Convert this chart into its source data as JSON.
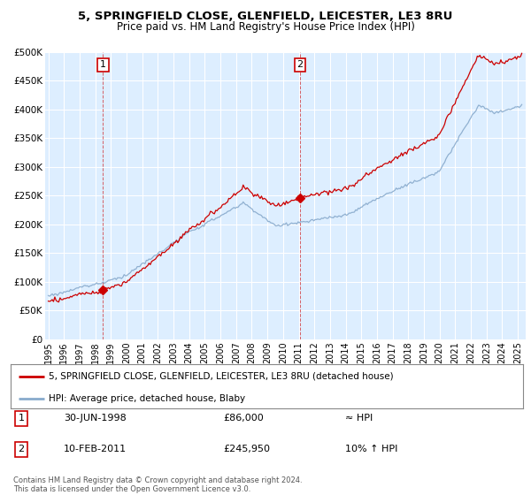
{
  "title1": "5, SPRINGFIELD CLOSE, GLENFIELD, LEICESTER, LE3 8RU",
  "title2": "Price paid vs. HM Land Registry's House Price Index (HPI)",
  "ylabel_ticks": [
    "£0",
    "£50K",
    "£100K",
    "£150K",
    "£200K",
    "£250K",
    "£300K",
    "£350K",
    "£400K",
    "£450K",
    "£500K"
  ],
  "ytick_vals": [
    0,
    50000,
    100000,
    150000,
    200000,
    250000,
    300000,
    350000,
    400000,
    450000,
    500000
  ],
  "ylim": [
    0,
    500000
  ],
  "xlim_start": 1994.8,
  "xlim_end": 2025.5,
  "sale1_x": 1998.5,
  "sale1_y": 86000,
  "sale1_label": "1",
  "sale2_x": 2011.08,
  "sale2_y": 245950,
  "sale2_label": "2",
  "sale1_date": "30-JUN-1998",
  "sale1_price": "£86,000",
  "sale1_hpi": "≈ HPI",
  "sale2_date": "10-FEB-2011",
  "sale2_price": "£245,950",
  "sale2_hpi": "10% ↑ HPI",
  "legend_line1": "5, SPRINGFIELD CLOSE, GLENFIELD, LEICESTER, LE3 8RU (detached house)",
  "legend_line2": "HPI: Average price, detached house, Blaby",
  "footer": "Contains HM Land Registry data © Crown copyright and database right 2024.\nThis data is licensed under the Open Government Licence v3.0.",
  "line_color_red": "#cc0000",
  "line_color_blue": "#88aacc",
  "bg_color": "#ddeeff",
  "grid_color": "#ffffff",
  "box_color": "#cc0000"
}
